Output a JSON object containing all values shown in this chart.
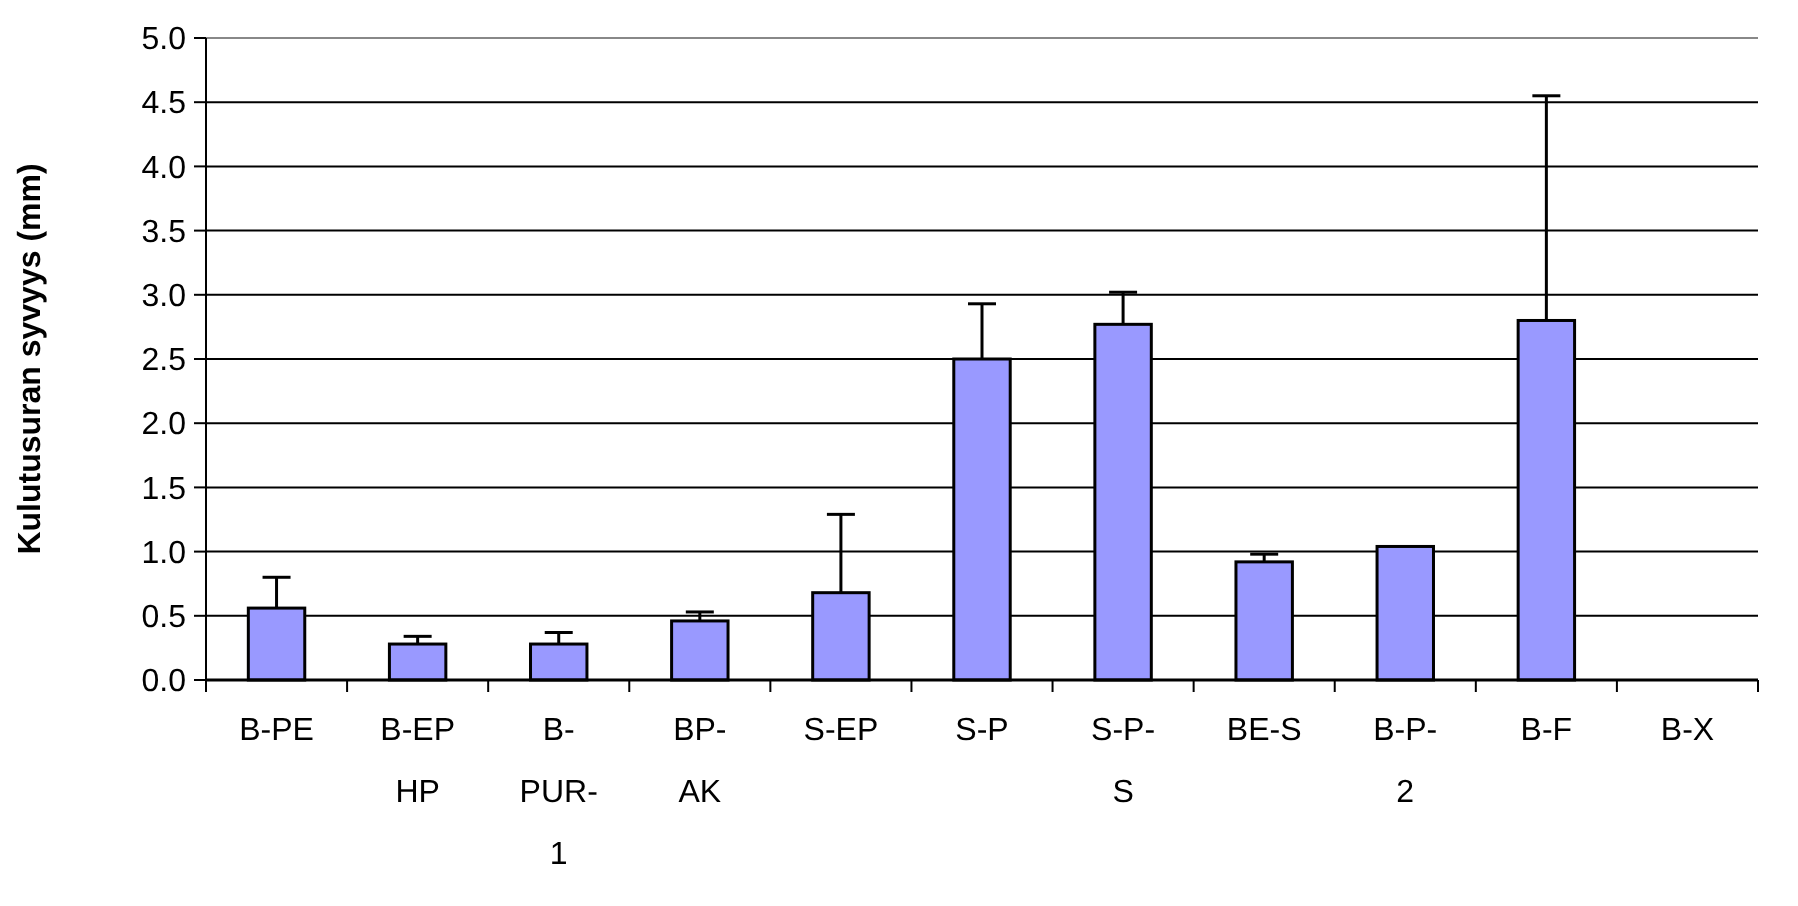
{
  "chart_data": {
    "type": "bar",
    "ylabel": "Kulutusuran syvyys (mm)",
    "categories": [
      "B-PE",
      "B-EP HP",
      "B-PUR-1",
      "BP-AK",
      "S-EP",
      "S-P",
      "S-P-S",
      "BE-S",
      "B-P-2",
      "B-F",
      "B-X"
    ],
    "values": [
      0.56,
      0.28,
      0.28,
      0.46,
      0.68,
      2.5,
      2.77,
      0.92,
      1.04,
      2.8,
      null
    ],
    "errors": [
      [
        0.56,
        0.8
      ],
      [
        0.28,
        0.34
      ],
      [
        0.28,
        0.37
      ],
      [
        0.46,
        0.53
      ],
      [
        0.68,
        1.29
      ],
      [
        2.5,
        2.93
      ],
      [
        2.77,
        3.02
      ],
      [
        0.92,
        0.98
      ],
      null,
      [
        2.8,
        4.55
      ],
      null
    ],
    "color": "#9999ff",
    "ylim": [
      0,
      5
    ],
    "yticks": [
      {
        "value": 0,
        "label": "0.0"
      },
      {
        "value": 0.5,
        "label": "0.5"
      },
      {
        "value": 1,
        "label": "1.0"
      },
      {
        "value": 1.5,
        "label": "1.5"
      },
      {
        "value": 2,
        "label": "2.0"
      },
      {
        "value": 2.5,
        "label": "2.5"
      },
      {
        "value": 3,
        "label": "3.0"
      },
      {
        "value": 3.5,
        "label": "3.5"
      },
      {
        "value": 4,
        "label": "4.0"
      },
      {
        "value": 4.5,
        "label": "4.5"
      },
      {
        "value": 5,
        "label": "5.0"
      }
    ],
    "grid": "y"
  }
}
